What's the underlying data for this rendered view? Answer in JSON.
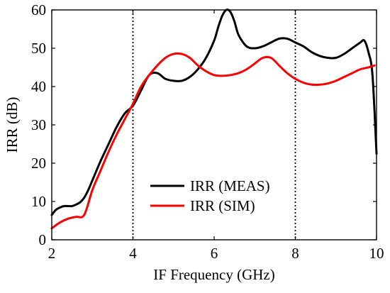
{
  "chart_data": {
    "type": "line",
    "xlabel": "IF Frequency (GHz)",
    "ylabel": "IRR (dB)",
    "xlim": [
      2,
      10
    ],
    "ylim": [
      0,
      60
    ],
    "xticks": [
      2,
      4,
      6,
      8,
      10
    ],
    "yticks": [
      0,
      10,
      20,
      30,
      40,
      50,
      60
    ],
    "grid": false,
    "legend_position": "lower-center",
    "vertical_lines": [
      4,
      8
    ],
    "series": [
      {
        "name": "IRR (MEAS)",
        "color": "#000000",
        "x": [
          2.0,
          2.1,
          2.2,
          2.3,
          2.4,
          2.5,
          2.6,
          2.7,
          2.8,
          2.9,
          3.0,
          3.2,
          3.4,
          3.6,
          3.8,
          4.0,
          4.2,
          4.4,
          4.6,
          4.8,
          5.0,
          5.2,
          5.4,
          5.6,
          5.8,
          6.0,
          6.1,
          6.2,
          6.3,
          6.4,
          6.5,
          6.6,
          6.8,
          7.0,
          7.2,
          7.4,
          7.6,
          7.8,
          8.0,
          8.2,
          8.4,
          8.6,
          8.8,
          9.0,
          9.2,
          9.4,
          9.6,
          9.7,
          9.8,
          9.9,
          10.0
        ],
        "y": [
          6.5,
          7.8,
          8.4,
          8.8,
          8.8,
          8.8,
          9.2,
          9.8,
          11.0,
          13.0,
          15.5,
          20.5,
          25.0,
          29.5,
          33.0,
          35.0,
          39.0,
          43.0,
          43.5,
          42.0,
          41.5,
          41.5,
          42.5,
          44.5,
          47.5,
          52.0,
          55.5,
          58.5,
          60.0,
          59.5,
          57.0,
          53.5,
          50.5,
          50.0,
          50.5,
          51.5,
          52.5,
          52.5,
          51.5,
          50.5,
          49.0,
          48.0,
          47.5,
          47.5,
          48.5,
          50.0,
          51.5,
          52.0,
          49.0,
          43.0,
          22.5
        ]
      },
      {
        "name": "IRR (SIM)",
        "color": "#ff0000",
        "x": [
          2.0,
          2.2,
          2.4,
          2.6,
          2.8,
          3.0,
          3.2,
          3.4,
          3.6,
          3.8,
          4.0,
          4.2,
          4.4,
          4.6,
          4.8,
          5.0,
          5.2,
          5.4,
          5.6,
          5.8,
          6.0,
          6.2,
          6.4,
          6.6,
          6.8,
          7.0,
          7.2,
          7.4,
          7.6,
          7.8,
          8.0,
          8.2,
          8.4,
          8.6,
          8.8,
          9.0,
          9.2,
          9.4,
          9.6,
          9.8,
          9.95
        ],
        "y": [
          3.0,
          4.5,
          5.5,
          6.0,
          6.5,
          13.0,
          18.0,
          23.0,
          27.5,
          31.5,
          35.5,
          40.0,
          43.0,
          45.5,
          47.5,
          48.5,
          48.5,
          47.5,
          45.5,
          44.0,
          43.0,
          42.8,
          43.0,
          43.5,
          44.5,
          46.0,
          47.5,
          47.5,
          45.5,
          43.5,
          42.0,
          41.0,
          40.5,
          40.5,
          40.8,
          41.5,
          42.5,
          43.5,
          44.5,
          45.0,
          45.5
        ]
      }
    ]
  }
}
